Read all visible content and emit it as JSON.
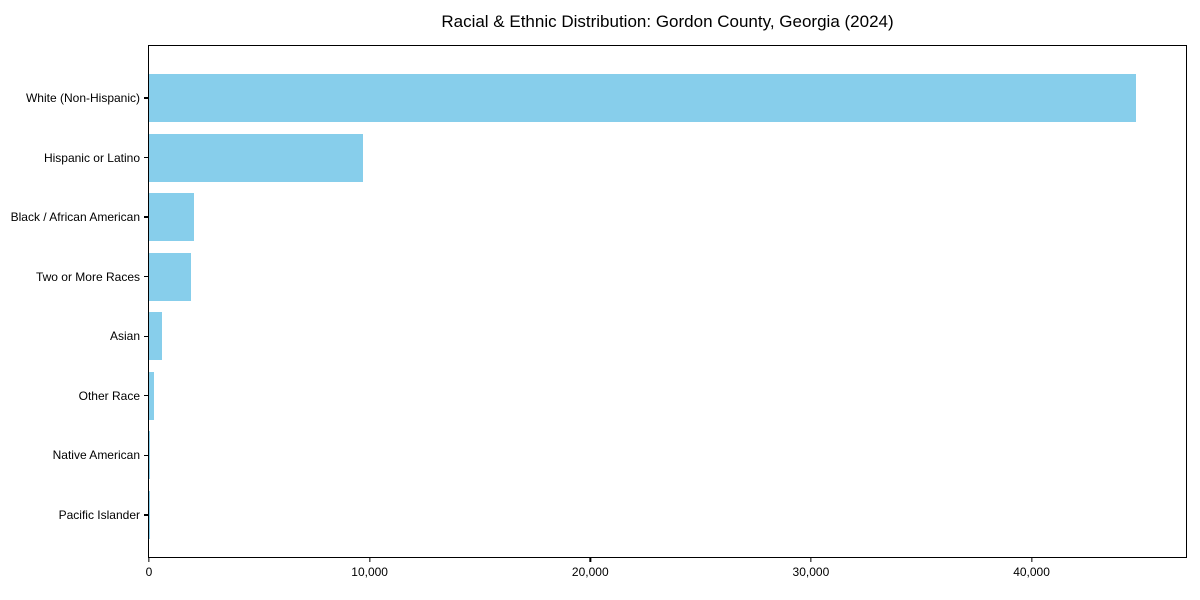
{
  "chart_data": {
    "type": "bar",
    "orientation": "horizontal",
    "title": "Racial & Ethnic Distribution: Gordon County, Georgia (2024)",
    "categories": [
      "White (Non-Hispanic)",
      "Hispanic or Latino",
      "Black / African American",
      "Two or More Races",
      "Asian",
      "Other Race",
      "Native American",
      "Pacific Islander"
    ],
    "values": [
      44750,
      9680,
      2040,
      1900,
      590,
      230,
      20,
      10
    ],
    "xlabel": "",
    "ylabel": "",
    "xlim": [
      0,
      47000
    ],
    "x_ticks": [
      0,
      10000,
      20000,
      30000,
      40000
    ],
    "x_tick_labels": [
      "0",
      "10,000",
      "20,000",
      "30,000",
      "40,000"
    ],
    "bar_color": "#87ceeb",
    "axis_color": "#000000",
    "grid": false,
    "legend": false
  }
}
